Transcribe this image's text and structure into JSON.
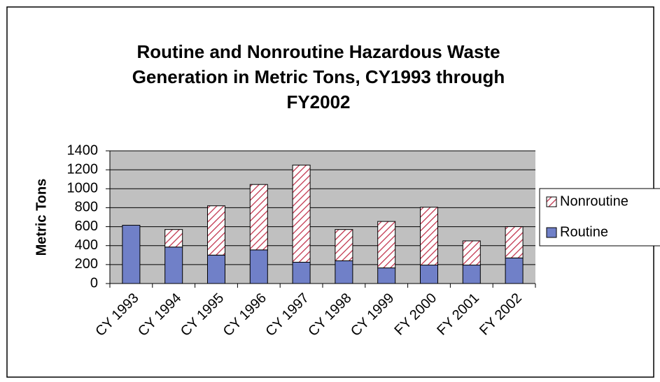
{
  "chart_data": {
    "type": "stacked_bar",
    "title": "Routine and Nonroutine Hazardous Waste Generation in Metric Tons, CY1993 through FY2002",
    "y_label": "Metric Tons",
    "categories": [
      "CY 1993",
      "CY 1994",
      "CY 1995",
      "CY 1996",
      "CY 1997",
      "CY 1998",
      "CY 1999",
      "FY 2000",
      "FY 2001",
      "FY 2002"
    ],
    "series": [
      {
        "name": "Routine",
        "color": "#7080c8",
        "values": [
          615,
          385,
          300,
          355,
          225,
          240,
          165,
          195,
          195,
          270
        ]
      },
      {
        "name": "Nonroutine",
        "color": "#c0304a",
        "pattern": "hatch",
        "values": [
          0,
          185,
          520,
          690,
          1025,
          330,
          490,
          610,
          255,
          330
        ]
      }
    ],
    "ylim": [
      0,
      1400
    ],
    "yticks": [
      0,
      200,
      400,
      600,
      800,
      1000,
      1200,
      1400
    ],
    "grid": true,
    "legend": "right"
  }
}
